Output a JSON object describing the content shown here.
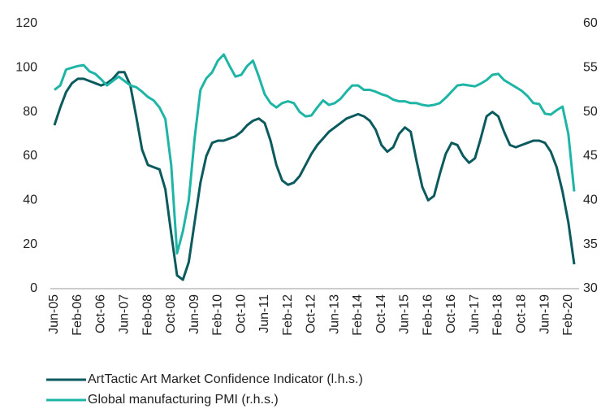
{
  "chart_data": {
    "type": "line",
    "categories": [
      "Jun-05",
      null,
      null,
      null,
      "Feb-06",
      null,
      null,
      null,
      "Oct-06",
      null,
      null,
      null,
      "Jun-07",
      null,
      null,
      null,
      "Feb-08",
      null,
      null,
      null,
      "Oct-08",
      null,
      null,
      null,
      "Jun-09",
      null,
      null,
      null,
      "Feb-10",
      null,
      null,
      null,
      "Oct-10",
      null,
      null,
      null,
      "Jun-11",
      null,
      null,
      null,
      "Feb-12",
      null,
      null,
      null,
      "Oct-12",
      null,
      null,
      null,
      "Jun-13",
      null,
      null,
      null,
      "Feb-14",
      null,
      null,
      null,
      "Oct-14",
      null,
      null,
      null,
      "Jun-15",
      null,
      null,
      null,
      "Feb-16",
      null,
      null,
      null,
      "Oct-16",
      null,
      null,
      null,
      "Jun-17",
      null,
      null,
      null,
      "Feb-18",
      null,
      null,
      null,
      "Oct-18",
      null,
      null,
      null,
      "Jun-19",
      null,
      null,
      null,
      "Feb-20",
      null
    ],
    "series": [
      {
        "name": "ArtTactic Art Market Confidence Indicator (l.h.s.)",
        "color": "#0b5a5e",
        "axis": "y",
        "values": [
          74,
          82,
          89,
          93,
          95,
          95,
          94,
          93,
          92,
          93,
          95,
          98,
          98,
          92,
          78,
          63,
          56,
          55,
          54,
          45,
          25,
          6,
          4,
          12,
          30,
          48,
          60,
          66,
          67,
          67,
          68,
          69,
          71,
          74,
          76,
          77,
          75,
          67,
          56,
          49,
          47,
          48,
          51,
          56,
          61,
          65,
          68,
          71,
          73,
          75,
          77,
          78,
          79,
          78,
          76,
          72,
          65,
          62,
          64,
          70,
          73,
          71,
          58,
          46,
          40,
          42,
          52,
          61,
          66,
          65,
          60,
          57,
          59,
          68,
          78,
          80,
          78,
          71,
          65,
          64,
          65,
          66,
          67,
          67,
          66,
          62,
          55,
          44,
          30,
          11
        ]
      },
      {
        "name": "Global manufacturing PMI (r.h.s.)",
        "color": "#1fb5a6",
        "axis": "y2",
        "values": [
          52.5,
          53,
          54.8,
          55,
          55.2,
          55.3,
          54.6,
          54.3,
          53.7,
          53,
          53.5,
          54,
          53.5,
          53,
          52.8,
          52.3,
          51.7,
          51.3,
          50.5,
          49.2,
          44,
          34,
          36.5,
          40,
          47,
          52.5,
          53.8,
          54.5,
          55.8,
          56.5,
          55.2,
          54,
          54.2,
          55.2,
          55.8,
          54,
          52,
          51,
          50.5,
          51,
          51.2,
          51,
          50,
          49.5,
          49.6,
          50.5,
          51.3,
          50.8,
          51,
          51.5,
          52.3,
          53,
          53,
          52.5,
          52.5,
          52.3,
          52,
          51.8,
          51.4,
          51.2,
          51.2,
          51,
          51,
          50.8,
          50.7,
          50.8,
          51,
          51.6,
          52.3,
          53,
          53.1,
          53,
          52.9,
          53.2,
          53.6,
          54.2,
          54.3,
          53.6,
          53.2,
          52.8,
          52.4,
          51.8,
          51,
          50.9,
          49.8,
          49.7,
          50.2,
          50.6,
          47.5,
          41
        ]
      }
    ],
    "ylim": [
      0,
      120
    ],
    "yticks": [
      0,
      20,
      40,
      60,
      80,
      100,
      120
    ],
    "y2lim": [
      30,
      60
    ],
    "y2ticks": [
      30,
      35,
      40,
      45,
      50,
      55,
      60
    ],
    "grid": false
  }
}
